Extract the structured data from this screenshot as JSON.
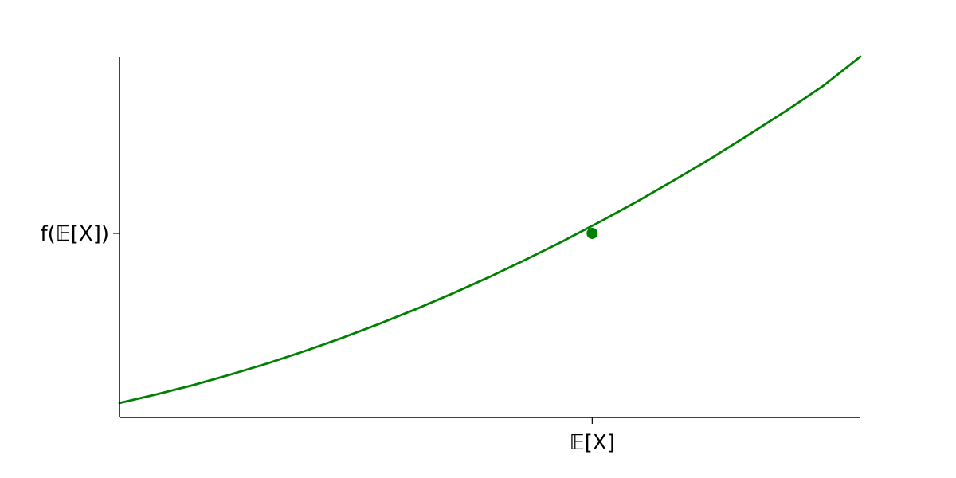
{
  "chart_data": {
    "type": "line",
    "title": "",
    "xlabel": "",
    "ylabel": "",
    "xlim": [
      0,
      1
    ],
    "ylim": [
      0,
      1
    ],
    "grid": false,
    "legend": "none",
    "spines": [
      "left",
      "bottom"
    ],
    "x_ticks": [
      {
        "value": 0.638,
        "label": "𝔼[X]"
      }
    ],
    "y_ticks": [
      {
        "value": 0.51,
        "label": "f(𝔼[X])"
      }
    ],
    "series": [
      {
        "color": "#008000",
        "x": [
          0.0,
          0.05,
          0.1,
          0.15,
          0.2,
          0.25,
          0.3,
          0.35,
          0.4,
          0.45,
          0.5,
          0.55,
          0.6,
          0.65,
          0.7,
          0.75,
          0.8,
          0.85,
          0.9,
          0.95,
          1.0
        ],
        "y": [
          0.04,
          0.064,
          0.09,
          0.119,
          0.15,
          0.184,
          0.22,
          0.259,
          0.3,
          0.344,
          0.39,
          0.439,
          0.49,
          0.544,
          0.6,
          0.659,
          0.72,
          0.784,
          0.85,
          0.919,
          1.0
        ]
      }
    ],
    "points": [
      {
        "x": 0.638,
        "y": 0.51,
        "color": "#008000"
      }
    ]
  }
}
